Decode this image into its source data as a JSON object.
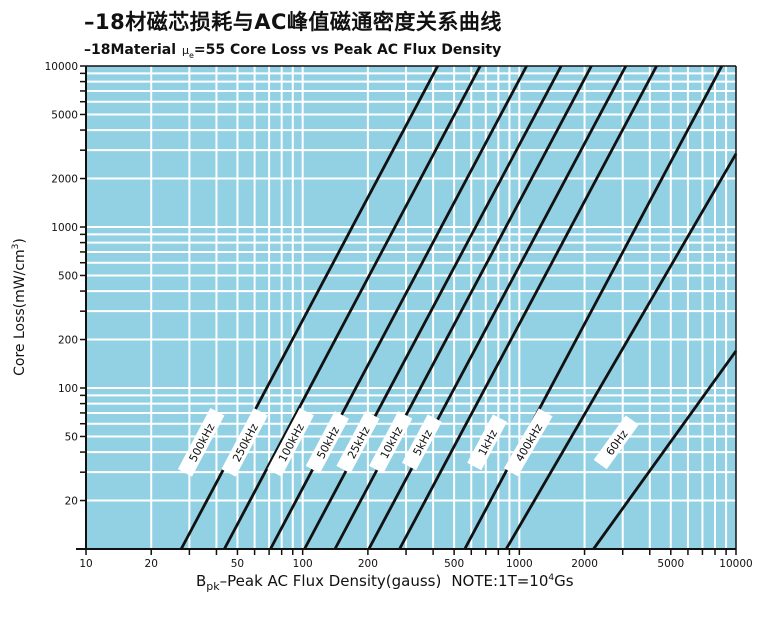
{
  "title_cn": "–18材磁芯损耗与AC峰值磁通密度关系曲线",
  "title_en": {
    "prefix": "–18Material",
    "mu": "μ",
    "mu_sub": "e",
    "rest": "=55 Core Loss vs Peak AC Flux Density"
  },
  "colors": {
    "plot_bg": "#92d0e4",
    "grid": "#ffffff",
    "line": "#111111",
    "label_bg": "#ffffff"
  },
  "chart_data": {
    "type": "line",
    "x_scale": "log",
    "y_scale": "log",
    "xlim": [
      10,
      10000
    ],
    "ylim": [
      10,
      10000
    ],
    "grid": true,
    "xlabel": {
      "prefix": "B",
      "sub": "pk",
      "main": "–Peak AC Flux Density(gauss)",
      "note": "NOTE:1T=10",
      "note_sup": "4",
      "note_end": "Gs"
    },
    "ylabel": {
      "main": "Core Loss(mW/cm",
      "sup": "3",
      "end": ")"
    },
    "x_tick_labels": [
      "10",
      "20",
      "50",
      "100",
      "200",
      "500",
      "1000",
      "2000",
      "5000",
      "10000"
    ],
    "y_tick_labels": [
      "10000",
      "5000",
      "2000",
      "1000",
      "500",
      "200",
      "100",
      "50",
      "20"
    ],
    "series": [
      {
        "name": "500kHz",
        "x": [
          27.5,
          420
        ],
        "y": [
          10,
          10000
        ],
        "label_at": [
          34,
          46
        ]
      },
      {
        "name": "250kHz",
        "x": [
          43.5,
          660
        ],
        "y": [
          10,
          10000
        ],
        "label_at": [
          54,
          46
        ]
      },
      {
        "name": "100kHz",
        "x": [
          71,
          1080
        ],
        "y": [
          10,
          10000
        ],
        "label_at": [
          88,
          46
        ]
      },
      {
        "name": "50kHz",
        "x": [
          102,
          1560
        ],
        "y": [
          10,
          10000
        ],
        "label_at": [
          130,
          46
        ]
      },
      {
        "name": "25kHz",
        "x": [
          141,
          2150
        ],
        "y": [
          10,
          10000
        ],
        "label_at": [
          180,
          46
        ]
      },
      {
        "name": "10kHz",
        "x": [
          202,
          3100
        ],
        "y": [
          10,
          10000
        ],
        "label_at": [
          255,
          46
        ]
      },
      {
        "name": "5kHz",
        "x": [
          280,
          4300
        ],
        "y": [
          10,
          10000
        ],
        "label_at": [
          355,
          46
        ]
      },
      {
        "name": "1kHz",
        "x": [
          560,
          8600
        ],
        "y": [
          10,
          10000
        ],
        "label_at": [
          710,
          46
        ]
      },
      {
        "name": "400kHz",
        "x": [
          870,
          10000
        ],
        "y": [
          10,
          2850
        ],
        "label_at": [
          1100,
          46
        ]
      },
      {
        "name": "60Hz",
        "x": [
          2200,
          10000
        ],
        "y": [
          10,
          170
        ],
        "label_at": [
          2800,
          46
        ]
      }
    ]
  }
}
